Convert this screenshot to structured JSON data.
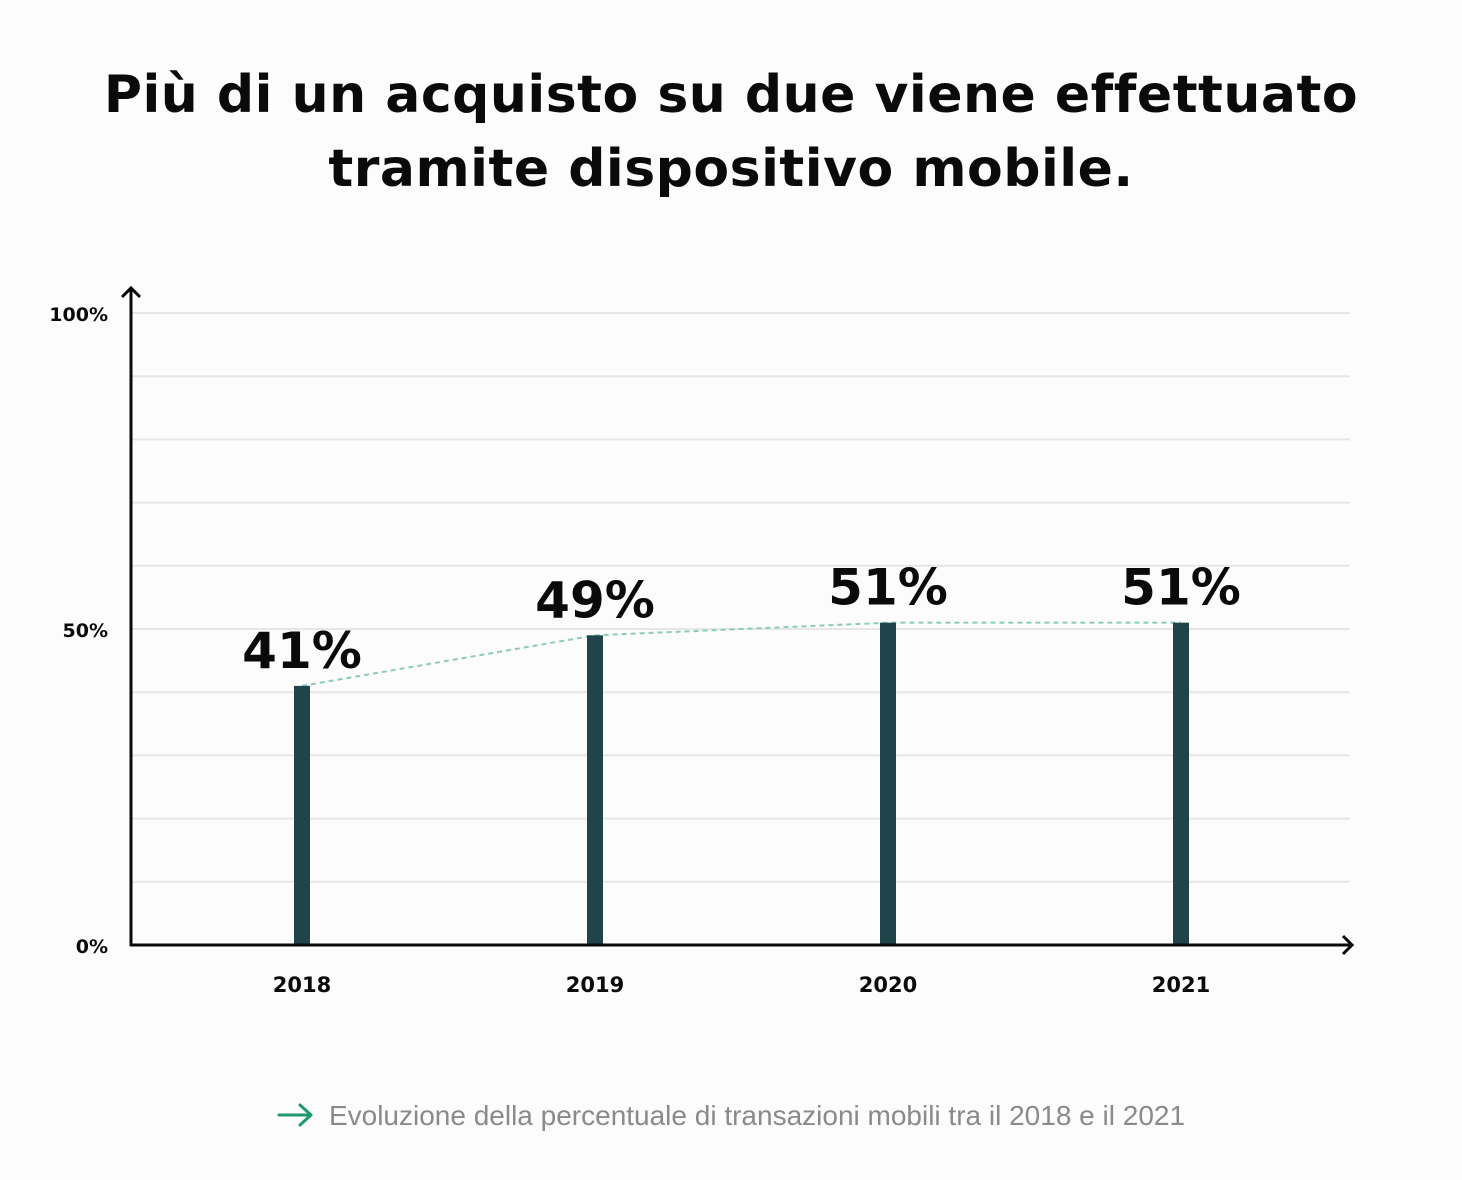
{
  "title_lines": [
    "Più di un acquisto su due viene effettuato",
    "tramite dispositivo mobile."
  ],
  "caption": "Evoluzione della percentuale di transazioni mobili tra il 2018 e il 2021",
  "caption_icon": "arrow-right-icon",
  "colors": {
    "bar": "#1f4449",
    "trend": "#8ccbb4",
    "caption_arrow": "#1f9a6e",
    "grid": "#e6e6e6",
    "axis": "#0a0a0a"
  },
  "chart_data": {
    "type": "bar",
    "categories": [
      "2018",
      "2019",
      "2020",
      "2021"
    ],
    "values": [
      41,
      49,
      51,
      51
    ],
    "value_labels": [
      "41%",
      "49%",
      "51%",
      "51%"
    ],
    "ylim": [
      0,
      100
    ],
    "y_tick_values": [
      0,
      50,
      100
    ],
    "y_tick_labels": [
      "0%",
      "50%",
      "100%"
    ],
    "grid_step": 10,
    "grid": true,
    "trend_line": "dashed",
    "xlabel": "",
    "ylabel": ""
  }
}
